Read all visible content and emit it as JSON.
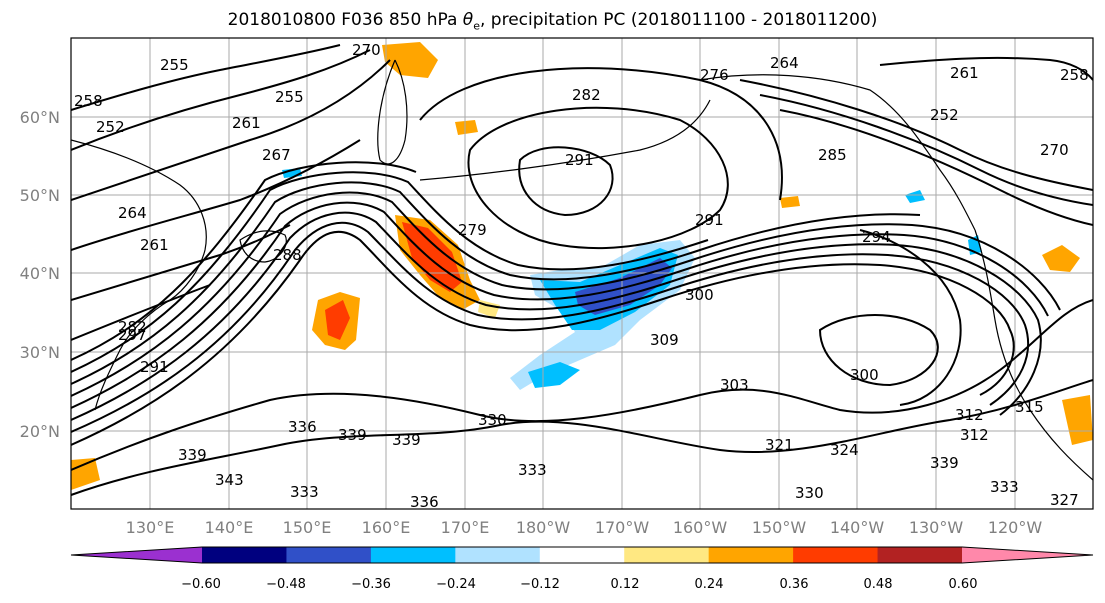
{
  "title": {
    "prefix": "2018010800 F036 850 hPa ",
    "symbol": "θ",
    "subscript": "e",
    "suffix": ", precipitation PC (2018011100 - 2018011200)"
  },
  "map": {
    "projection": "equirectangular",
    "lon_range": "120°E to 115°W",
    "lat_range": "10°N to 70°N",
    "gridlines": true,
    "lat_labels": [
      "60°N",
      "50°N",
      "40°N",
      "30°N",
      "20°N"
    ],
    "lon_labels": [
      "130°E",
      "140°E",
      "150°E",
      "160°E",
      "170°E",
      "180°W",
      "170°W",
      "160°W",
      "150°W",
      "140°W",
      "130°W",
      "120°W"
    ],
    "contour_color": "#000000",
    "coastline_color": "#000000",
    "theta_e_contour_labels": [
      "255",
      "258",
      "252",
      "255",
      "261",
      "267",
      "270",
      "264",
      "261",
      "276",
      "264",
      "261",
      "282",
      "291",
      "285",
      "270",
      "258",
      "252",
      "279",
      "288",
      "291",
      "294",
      "300",
      "309",
      "300",
      "303",
      "312",
      "315",
      "321",
      "324",
      "330",
      "339",
      "336",
      "339",
      "330",
      "333",
      "339",
      "343",
      "336",
      "333",
      "291",
      "297",
      "282",
      "312",
      "339",
      "333",
      "327"
    ]
  },
  "colorbar": {
    "colors": [
      "#9b30d0",
      "#00007f",
      "#3050c8",
      "#00bfff",
      "#b0e2ff",
      "#ffffff",
      "#ffe882",
      "#ffa500",
      "#ff3c00",
      "#b22222",
      "#ff88aa"
    ],
    "tick_labels": [
      "−0.60",
      "−0.48",
      "−0.36",
      "−0.24",
      "−0.12",
      "0.12",
      "0.24",
      "0.36",
      "0.48",
      "0.60"
    ]
  }
}
